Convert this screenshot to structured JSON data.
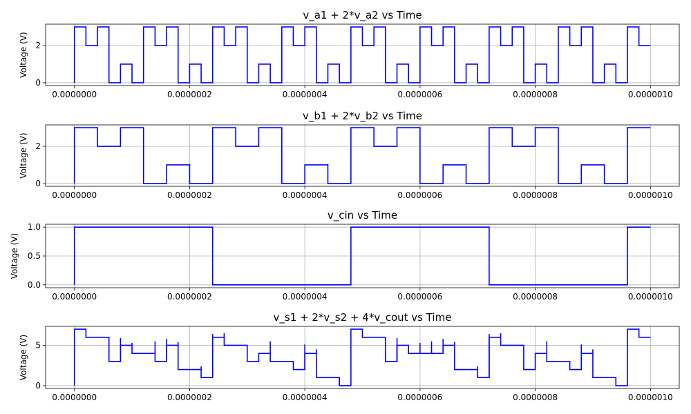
{
  "colors": {
    "series": "#0000ff",
    "grid": "#b0b0b0",
    "axes": "#000000"
  },
  "chart_data": [
    {
      "type": "line",
      "title": "v_a1 + 2*v_a2 vs Time",
      "xlabel": "",
      "ylabel": "Voltage (V)",
      "xlim": [
        -5e-08,
        1.05e-06
      ],
      "ylim": [
        -0.15,
        3.15
      ],
      "grid": true,
      "xticks": [
        0,
        2e-07,
        4e-07,
        6e-07,
        8e-07,
        1e-06
      ],
      "xtick_labels": [
        "0.0000000",
        "0.0000002",
        "0.0000004",
        "0.0000006",
        "0.0000008",
        "0.0000010"
      ],
      "yticks": [
        0,
        2
      ],
      "ytick_labels": [
        "0",
        "2"
      ],
      "series": [
        {
          "steps": [
            [
              0,
              0
            ],
            [
              0,
              3
            ],
            [
              2e-08,
              2
            ],
            [
              4e-08,
              3
            ],
            [
              6e-08,
              0
            ],
            [
              8e-08,
              1
            ],
            [
              1e-07,
              0
            ],
            [
              1.2e-07,
              3
            ],
            [
              1.4e-07,
              2
            ],
            [
              1.6e-07,
              3
            ],
            [
              1.8e-07,
              0
            ],
            [
              2e-07,
              1
            ],
            [
              2.2e-07,
              0
            ],
            [
              2.4e-07,
              3
            ],
            [
              2.6e-07,
              2
            ],
            [
              2.8e-07,
              3
            ],
            [
              3e-07,
              0
            ],
            [
              3.2e-07,
              1
            ],
            [
              3.4e-07,
              0
            ],
            [
              3.6e-07,
              3
            ],
            [
              3.8e-07,
              2
            ],
            [
              4e-07,
              3
            ],
            [
              4.2e-07,
              0
            ],
            [
              4.4e-07,
              1
            ],
            [
              4.6e-07,
              0
            ],
            [
              4.8e-07,
              3
            ],
            [
              5e-07,
              2
            ],
            [
              5.2e-07,
              3
            ],
            [
              5.4e-07,
              0
            ],
            [
              5.6e-07,
              1
            ],
            [
              5.8e-07,
              0
            ],
            [
              6e-07,
              3
            ],
            [
              6.2e-07,
              2
            ],
            [
              6.4e-07,
              3
            ],
            [
              6.6e-07,
              0
            ],
            [
              6.8e-07,
              1
            ],
            [
              7e-07,
              0
            ],
            [
              7.2e-07,
              3
            ],
            [
              7.4e-07,
              2
            ],
            [
              7.6e-07,
              3
            ],
            [
              7.8e-07,
              0
            ],
            [
              8e-07,
              1
            ],
            [
              8.2e-07,
              0
            ],
            [
              8.4e-07,
              3
            ],
            [
              8.6e-07,
              2
            ],
            [
              8.8e-07,
              3
            ],
            [
              9e-07,
              0
            ],
            [
              9.2e-07,
              1
            ],
            [
              9.4e-07,
              0
            ],
            [
              9.6e-07,
              3
            ],
            [
              9.8e-07,
              2
            ],
            [
              1e-06,
              2
            ]
          ]
        }
      ]
    },
    {
      "type": "line",
      "title": "v_b1 + 2*v_b2 vs Time",
      "xlabel": "",
      "ylabel": "Voltage (V)",
      "xlim": [
        -5e-08,
        1.05e-06
      ],
      "ylim": [
        -0.15,
        3.15
      ],
      "grid": true,
      "xticks": [
        0,
        2e-07,
        4e-07,
        6e-07,
        8e-07,
        1e-06
      ],
      "xtick_labels": [
        "0.0000000",
        "0.0000002",
        "0.0000004",
        "0.0000006",
        "0.0000008",
        "0.0000010"
      ],
      "yticks": [
        0,
        2
      ],
      "ytick_labels": [
        "0",
        "2"
      ],
      "series": [
        {
          "steps": [
            [
              0,
              0
            ],
            [
              0,
              3
            ],
            [
              4e-08,
              2
            ],
            [
              8e-08,
              3
            ],
            [
              1.2e-07,
              0
            ],
            [
              1.6e-07,
              1
            ],
            [
              2e-07,
              0
            ],
            [
              2.4e-07,
              3
            ],
            [
              2.8e-07,
              2
            ],
            [
              3.2e-07,
              3
            ],
            [
              3.6e-07,
              0
            ],
            [
              4e-07,
              1
            ],
            [
              4.4e-07,
              0
            ],
            [
              4.8e-07,
              3
            ],
            [
              5.2e-07,
              2
            ],
            [
              5.6e-07,
              3
            ],
            [
              6e-07,
              0
            ],
            [
              6.4e-07,
              1
            ],
            [
              6.8e-07,
              0
            ],
            [
              7.2e-07,
              3
            ],
            [
              7.6e-07,
              2
            ],
            [
              8e-07,
              3
            ],
            [
              8.4e-07,
              0
            ],
            [
              8.8e-07,
              1
            ],
            [
              9.2e-07,
              0
            ],
            [
              9.6e-07,
              3
            ],
            [
              1e-06,
              3
            ]
          ]
        }
      ]
    },
    {
      "type": "line",
      "title": "v_cin vs Time",
      "xlabel": "",
      "ylabel": "Voltage (V)",
      "xlim": [
        -5e-08,
        1.05e-06
      ],
      "ylim": [
        -0.05,
        1.05
      ],
      "grid": true,
      "xticks": [
        0,
        2e-07,
        4e-07,
        6e-07,
        8e-07,
        1e-06
      ],
      "xtick_labels": [
        "0.0000000",
        "0.0000002",
        "0.0000004",
        "0.0000006",
        "0.0000008",
        "0.0000010"
      ],
      "yticks": [
        0,
        0.5,
        1
      ],
      "ytick_labels": [
        "0.0",
        "0.5",
        "1.0"
      ],
      "series": [
        {
          "steps": [
            [
              0,
              0
            ],
            [
              0,
              1
            ],
            [
              2.4e-07,
              0
            ],
            [
              4.8e-07,
              1
            ],
            [
              7.2e-07,
              0
            ],
            [
              9.6e-07,
              1
            ],
            [
              1e-06,
              1
            ]
          ]
        }
      ]
    },
    {
      "type": "line",
      "title": "v_s1 + 2*v_s2 + 4*v_cout vs Time",
      "xlabel": "",
      "ylabel": "Voltage (V)",
      "xlim": [
        -5e-08,
        1.05e-06
      ],
      "ylim": [
        -0.35,
        7.35
      ],
      "grid": true,
      "xticks": [
        0,
        2e-07,
        4e-07,
        6e-07,
        8e-07,
        1e-06
      ],
      "xtick_labels": [
        "0.0000000",
        "0.0000002",
        "0.0000004",
        "0.0000006",
        "0.0000008",
        "0.0000010"
      ],
      "yticks": [
        0,
        5
      ],
      "ytick_labels": [
        "0",
        "5"
      ],
      "series": [
        {
          "steps": [
            [
              0,
              0
            ],
            [
              0,
              7
            ],
            [
              2e-08,
              6
            ],
            [
              6e-08,
              3
            ],
            [
              8e-08,
              5
            ],
            [
              1e-07,
              4
            ],
            [
              1.2e-07,
              4
            ],
            [
              1.4e-07,
              3
            ],
            [
              1.6e-07,
              5
            ],
            [
              1.8e-07,
              2
            ],
            [
              2.2e-07,
              1
            ],
            [
              2.4e-07,
              6
            ],
            [
              2.6e-07,
              5
            ],
            [
              3e-07,
              3
            ],
            [
              3.2e-07,
              4
            ],
            [
              3.4e-07,
              3
            ],
            [
              3.8e-07,
              2
            ],
            [
              4e-07,
              4
            ],
            [
              4.2e-07,
              1
            ],
            [
              4.6e-07,
              0
            ],
            [
              4.8e-07,
              7
            ],
            [
              5e-07,
              6
            ],
            [
              5.4e-07,
              3
            ],
            [
              5.6e-07,
              5
            ],
            [
              5.8e-07,
              4
            ],
            [
              6.2e-07,
              4
            ],
            [
              6.4e-07,
              5
            ],
            [
              6.6e-07,
              2
            ],
            [
              7e-07,
              1
            ],
            [
              7.2e-07,
              6
            ],
            [
              7.4e-07,
              5
            ],
            [
              7.8e-07,
              2
            ],
            [
              8e-07,
              4
            ],
            [
              8.2e-07,
              3
            ],
            [
              8.6e-07,
              2
            ],
            [
              8.8e-07,
              4
            ],
            [
              9e-07,
              1
            ],
            [
              9.4e-07,
              0
            ],
            [
              9.6e-07,
              7
            ],
            [
              9.8e-07,
              6
            ],
            [
              1e-06,
              6
            ]
          ],
          "spikes": [
            [
              8e-08,
              5.9
            ],
            [
              1e-07,
              5.3
            ],
            [
              1.4e-07,
              5.5
            ],
            [
              1.6e-07,
              5.8
            ],
            [
              1.8e-07,
              5.4
            ],
            [
              2.2e-07,
              2.4
            ],
            [
              2.4e-07,
              6.4
            ],
            [
              2.6e-07,
              6.5
            ],
            [
              3e-07,
              5
            ],
            [
              3.4e-07,
              5.5
            ],
            [
              4e-07,
              5.1
            ],
            [
              4.2e-07,
              4.5
            ],
            [
              5.6e-07,
              5.9
            ],
            [
              6e-07,
              5.3
            ],
            [
              6.2e-07,
              5.5
            ],
            [
              6.4e-07,
              5.8
            ],
            [
              6.6e-07,
              5.4
            ],
            [
              7e-07,
              2.4
            ],
            [
              7.2e-07,
              6.4
            ],
            [
              7.4e-07,
              6.5
            ],
            [
              7.8e-07,
              5
            ],
            [
              8.2e-07,
              5.5
            ],
            [
              8.8e-07,
              5.1
            ],
            [
              9e-07,
              4.5
            ]
          ]
        }
      ]
    }
  ]
}
